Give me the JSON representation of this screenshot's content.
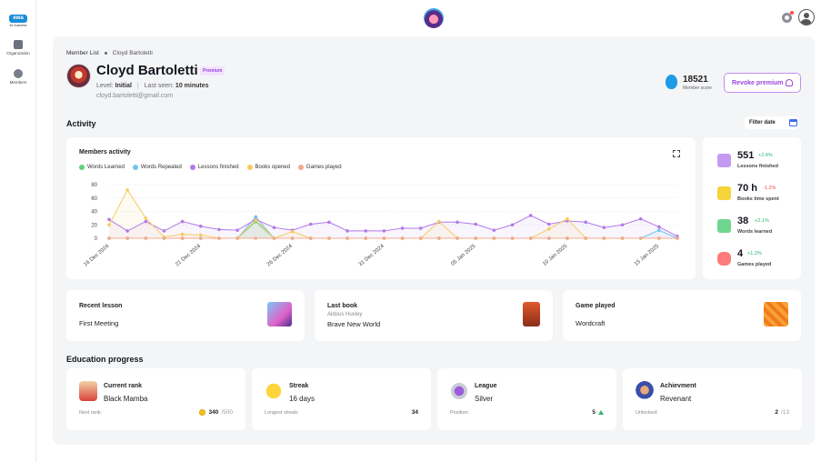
{
  "sidebar": {
    "logo_text": "ewa",
    "logo_sub": "for business",
    "items": [
      {
        "label": "Organization",
        "icon": "stack-icon"
      },
      {
        "label": "Members",
        "icon": "person-icon"
      }
    ]
  },
  "breadcrumb": {
    "root": "Member List",
    "current": "Cloyd Bartoletti"
  },
  "profile": {
    "name": "Cloyd Bartoletti",
    "badge": "Premium",
    "level_label": "Level:",
    "level_value": "Initial",
    "last_seen_label": "Last seen:",
    "last_seen_value": "10 minutes",
    "email": "cloyd.bartoletti@gmail.com"
  },
  "member_score": {
    "value": "18521",
    "label": "Member score"
  },
  "revoke_button": "Revoke premium",
  "activity": {
    "title": "Activity",
    "filter_label": "Filter date"
  },
  "chart_data": {
    "type": "line",
    "title": "Members activity",
    "x": [
      "16 Dec 2024",
      "17 Dec 2024",
      "18 Dec 2024",
      "19 Dec 2024",
      "20 Dec 2024",
      "21 Dec 2024",
      "22 Dec 2024",
      "23 Dec 2024",
      "24 Dec 2024",
      "25 Dec 2024",
      "26 Dec 2024",
      "27 Dec 2024",
      "28 Dec 2024",
      "29 Dec 2024",
      "30 Dec 2024",
      "31 Dec 2024",
      "01 Jan 2025",
      "02 Jan 2025",
      "03 Jan 2025",
      "04 Jan 2025",
      "05 Jan 2025",
      "06 Jan 2025",
      "07 Jan 2025",
      "08 Jan 2025",
      "09 Jan 2025",
      "10 Jan 2025",
      "11 Jan 2025",
      "12 Jan 2025",
      "13 Jan 2025",
      "14 Jan 2025",
      "15 Jan 2025",
      "16 Jan 2025"
    ],
    "x_ticks": [
      "16 Dec 2024",
      "21 Dec 2024",
      "26 Dec 2024",
      "31 Dec 2024",
      "05 Jan 2025",
      "10 Jan 2025",
      "15 Jan 2025"
    ],
    "ylim": [
      0,
      80
    ],
    "y_ticks": [
      0,
      20,
      40,
      60,
      80
    ],
    "grid": true,
    "legend_position": "top-left",
    "series": [
      {
        "name": "Words Learned",
        "color": "#5fcf7e",
        "values": [
          0,
          0,
          0,
          0,
          0,
          0,
          0,
          0,
          25,
          0,
          0,
          0,
          0,
          0,
          0,
          0,
          0,
          0,
          0,
          0,
          0,
          0,
          0,
          0,
          0,
          0,
          0,
          0,
          0,
          0,
          0,
          0
        ]
      },
      {
        "name": "Words Repeated",
        "color": "#6fc3f0",
        "values": [
          0,
          0,
          0,
          0,
          0,
          0,
          0,
          0,
          32,
          0,
          0,
          0,
          0,
          0,
          0,
          0,
          0,
          0,
          0,
          0,
          0,
          0,
          0,
          0,
          0,
          0,
          0,
          0,
          0,
          0,
          12,
          0
        ]
      },
      {
        "name": "Lessons finished",
        "color": "#b27ae8",
        "values": [
          28,
          11,
          25,
          11,
          25,
          18,
          13,
          12,
          28,
          16,
          12,
          21,
          24,
          11,
          11,
          11,
          15,
          15,
          24,
          24,
          21,
          12,
          20,
          34,
          21,
          26,
          24,
          16,
          20,
          29,
          17,
          3
        ]
      },
      {
        "name": "Books opened",
        "color": "#f7cc5c",
        "values": [
          20,
          72,
          30,
          2,
          6,
          5,
          0,
          0,
          27,
          0,
          10,
          0,
          0,
          0,
          0,
          0,
          0,
          0,
          25,
          0,
          0,
          0,
          0,
          0,
          14,
          29,
          0,
          0,
          0,
          0,
          0,
          0
        ]
      },
      {
        "name": "Games played",
        "color": "#f6a98a",
        "values": [
          0,
          0,
          0,
          0,
          0,
          0,
          0,
          0,
          0,
          0,
          0,
          0,
          0,
          0,
          0,
          0,
          0,
          0,
          0,
          0,
          0,
          0,
          0,
          0,
          0,
          0,
          0,
          0,
          0,
          0,
          0,
          0
        ]
      }
    ]
  },
  "stats": [
    {
      "value": "551",
      "delta": "+2.4%",
      "direction": "up",
      "label": "Lessons finished",
      "icon": "lesson-check-icon",
      "color": "#b27ae8"
    },
    {
      "value": "70 h",
      "delta": "-1.2%",
      "direction": "down",
      "label": "Books time spent",
      "icon": "book-icon",
      "color": "#f5d33a"
    },
    {
      "value": "38",
      "delta": "+2.1%",
      "direction": "up",
      "label": "Words learned",
      "icon": "chat-bubble-icon",
      "color": "#5fcf7e"
    },
    {
      "value": "4",
      "delta": "+1.2%",
      "direction": "up",
      "label": "Games played",
      "icon": "gamepad-icon",
      "color": "#ff6b6b"
    }
  ],
  "recent_lesson": {
    "title": "Recent lesson",
    "value": "First Meeting"
  },
  "last_book": {
    "title": "Last book",
    "author": "Aldous Huxley",
    "value": "Brave New World"
  },
  "game_played": {
    "title": "Game played",
    "value": "Wordcraft"
  },
  "education": {
    "title": "Education progress",
    "cards": [
      {
        "title": "Current rank",
        "value": "Black Mamba",
        "foot_label": "Next rank:",
        "foot_value": "340",
        "foot_total": "/500"
      },
      {
        "title": "Streak",
        "value": "16 days",
        "foot_label": "Longest streak:",
        "foot_value": "34"
      },
      {
        "title": "League",
        "value": "Silver",
        "foot_label": "Position:",
        "foot_value": "5"
      },
      {
        "title": "Achievment",
        "value": "Revenant",
        "foot_label": "Unlocked:",
        "foot_value": "2",
        "foot_total": "/13"
      }
    ]
  }
}
